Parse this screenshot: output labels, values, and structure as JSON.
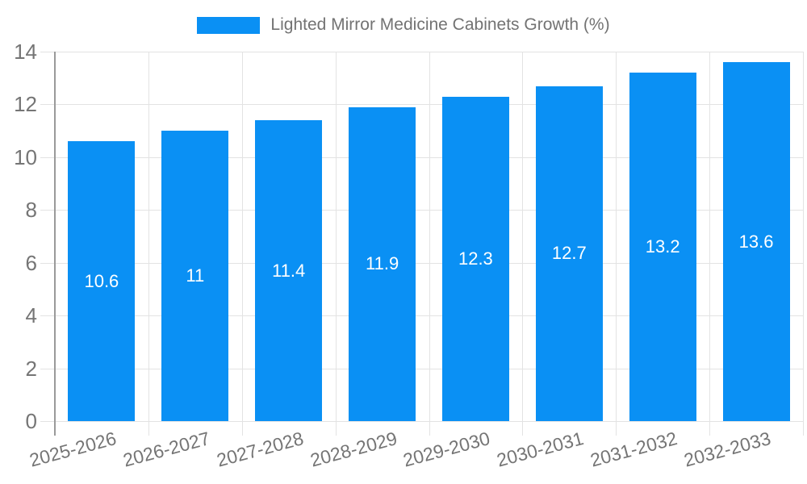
{
  "chart_data": {
    "type": "bar",
    "title": "",
    "legend": {
      "label": "Lighted Mirror Medicine Cabinets Growth (%)",
      "position": "top"
    },
    "categories": [
      "2025-2026",
      "2026-2027",
      "2027-2028",
      "2028-2029",
      "2029-2030",
      "2030-2031",
      "2031-2032",
      "2032-2033"
    ],
    "values": [
      10.6,
      11,
      11.4,
      11.9,
      12.3,
      12.7,
      13.2,
      13.6
    ],
    "value_labels": [
      "10.6",
      "11",
      "11.4",
      "11.9",
      "12.3",
      "12.7",
      "13.2",
      "13.6"
    ],
    "xlabel": "",
    "ylabel": "",
    "ylim": [
      0,
      14
    ],
    "yticks": [
      0,
      2,
      4,
      6,
      8,
      10,
      12,
      14
    ],
    "grid": true,
    "x_label_rotation_deg": -15,
    "colors": {
      "bar": "#0a90f4",
      "bar_label": "#ffffff",
      "axis_text": "#757575",
      "grid_line": "#e3e3e3",
      "axis_line": "#9a9a9a",
      "background": "#ffffff"
    }
  }
}
